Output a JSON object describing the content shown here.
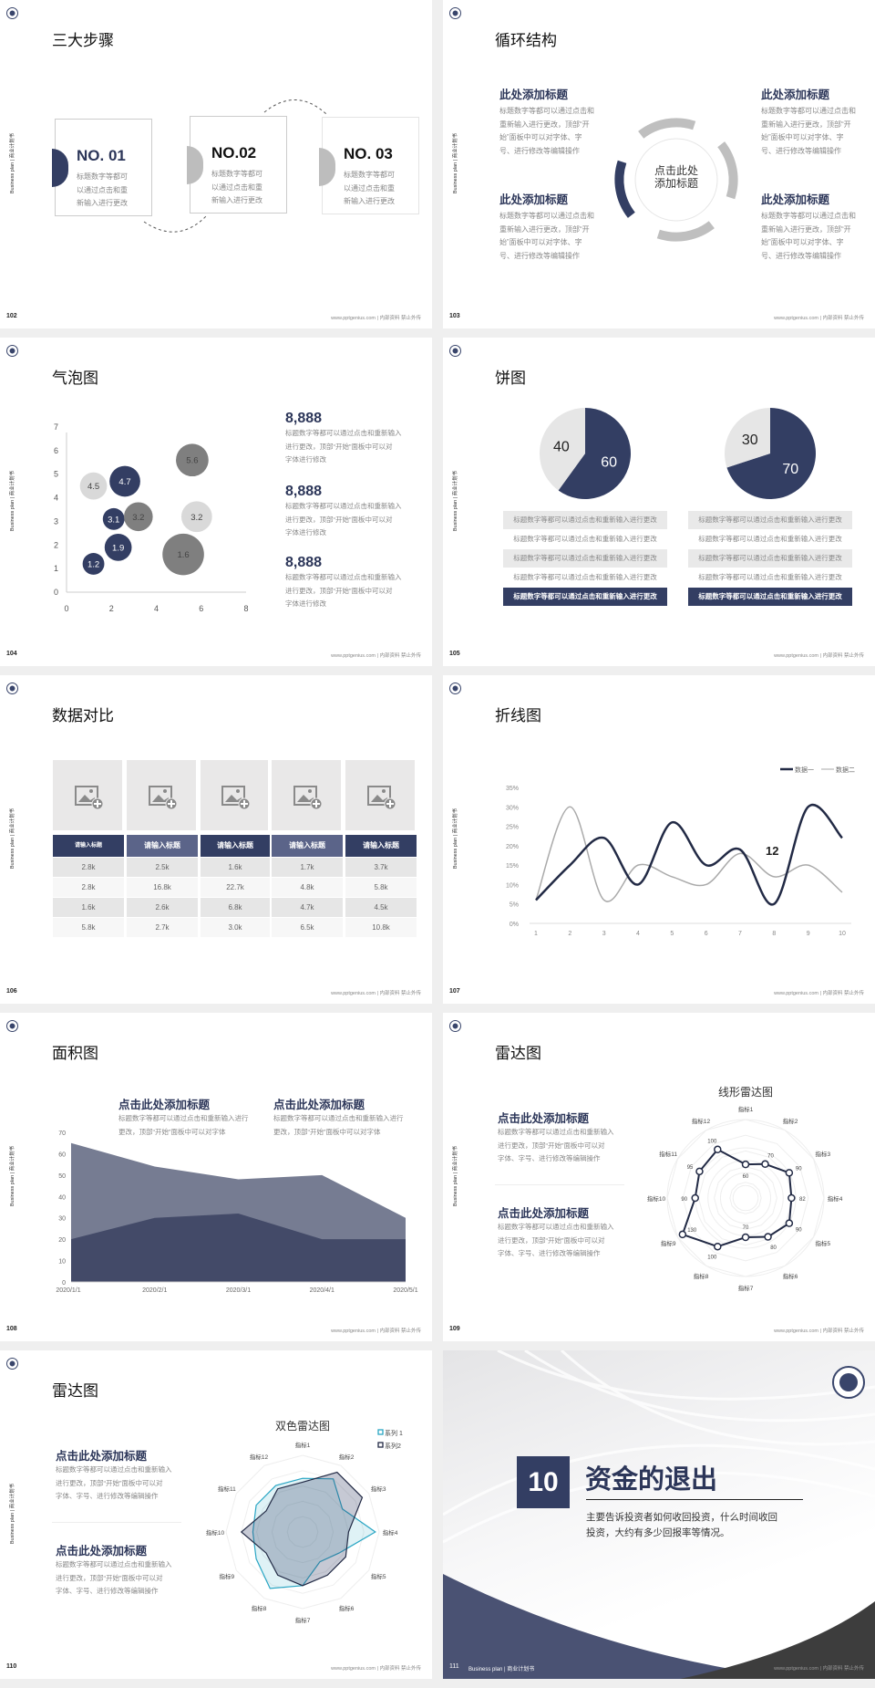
{
  "common": {
    "side_label": "Business plan | 商业计划书",
    "footer": "www.pptgenius.com | 内部资料 禁止外传",
    "desc_short": [
      "标题数字等都可",
      "以通过点击和重",
      "新输入进行更改"
    ],
    "desc_long": [
      "标题数字等都可以通过点击和",
      "重新输入进行更改，顶部“开",
      "始”面板中可以对字体、字",
      "号、进行修改等编辑操作"
    ],
    "accent": "#333e63",
    "grey": "#7f7f7f",
    "light": "#d9d9d9"
  },
  "slides": {
    "s102": {
      "page": "102",
      "title": "三大步骤",
      "steps": [
        {
          "no": "NO. 01"
        },
        {
          "no": "NO.02"
        },
        {
          "no": "NO. 03"
        }
      ]
    },
    "s103": {
      "page": "103",
      "title": "循环结构",
      "center": [
        "点击此处",
        "添加标题"
      ],
      "heading": "此处添加标题"
    },
    "s104": {
      "page": "104",
      "title": "气泡图",
      "stats": [
        {
          "value": "8,888",
          "lines": [
            "标题数字等都可以通过点击和重新输入",
            "进行更改，顶部“开始”面板中可以对",
            "字体进行修改"
          ]
        },
        {
          "value": "8,888",
          "lines": [
            "标题数字等都可以通过点击和重新输入",
            "进行更改，顶部“开始”面板中可以对",
            "字体进行修改"
          ]
        },
        {
          "value": "8,888",
          "lines": [
            "标题数字等都可以通过点击和重新输入",
            "进行更改，顶部“开始”面板中可以对",
            "字体进行修改"
          ]
        }
      ]
    },
    "s105": {
      "page": "105",
      "title": "饼图",
      "row_text": "标题数字等都可以通过点击和重新输入进行更改"
    },
    "s106": {
      "page": "106",
      "title": "数据对比",
      "headers": [
        "请输入标题",
        "请输入标题",
        "请输入标题",
        "请输入标题",
        "请输入标题"
      ],
      "rows": [
        [
          "2.8k",
          "2.5k",
          "1.6k",
          "1.7k",
          "3.7k"
        ],
        [
          "2.8k",
          "16.8k",
          "22.7k",
          "4.8k",
          "5.8k"
        ],
        [
          "1.6k",
          "2.6k",
          "6.8k",
          "4.7k",
          "4.5k"
        ],
        [
          "5.8k",
          "2.7k",
          "3.0k",
          "6.5k",
          "10.8k"
        ]
      ]
    },
    "s107": {
      "page": "107",
      "title": "折线图",
      "annotation": "12"
    },
    "s108": {
      "page": "108",
      "title": "面积图",
      "blocks": [
        {
          "heading": "点击此处添加标题",
          "lines": [
            "标题数字等都可以通过点击和重新输入进行",
            "更改，顶部“开始”面板中可以对字体"
          ]
        },
        {
          "heading": "点击此处添加标题",
          "lines": [
            "标题数字等都可以通过点击和重新输入进行",
            "更改，顶部“开始”面板中可以对字体"
          ]
        }
      ]
    },
    "s109": {
      "page": "109",
      "title": "雷达图",
      "blocks": [
        {
          "heading": "点击此处添加标题",
          "lines": [
            "标题数字等都可以通过点击和重新输入",
            "进行更改，顶部“开始”面板中可以对",
            "字体、字号、进行修改等编辑操作"
          ]
        },
        {
          "heading": "点击此处添加标题",
          "lines": [
            "标题数字等都可以通过点击和重新输入",
            "进行更改，顶部“开始”面板中可以对",
            "字体、字号、进行修改等编辑操作"
          ]
        }
      ]
    },
    "s110": {
      "page": "110",
      "title": "雷达图",
      "blocks": [
        {
          "heading": "点击此处添加标题",
          "lines": [
            "标题数字等都可以通过点击和重新输入",
            "进行更改，顶部“开始”面板中可以对",
            "字体、字号、进行修改等编辑操作"
          ]
        },
        {
          "heading": "点击此处添加标题",
          "lines": [
            "标题数字等都可以通过点击和重新输入",
            "进行更改，顶部“开始”面板中可以对",
            "字体、字号、进行修改等编辑操作"
          ]
        }
      ]
    },
    "s111": {
      "page": "111",
      "number": "10",
      "title": "资金的退出",
      "lines": [
        "主要告诉投资者如何收回投资，什么时间收回",
        "投资，大约有多少回报率等情况。"
      ],
      "footer_left": "Business plan | 商业计划书"
    }
  },
  "chart_data": [
    {
      "type": "scatter",
      "subtype": "bubble",
      "xlim": [
        0,
        8
      ],
      "ylim": [
        0,
        7
      ],
      "xticks": [
        "0",
        "2",
        "4",
        "6",
        "8"
      ],
      "yticks": [
        "0",
        "1",
        "2",
        "3",
        "4",
        "5",
        "6",
        "7"
      ],
      "points": [
        {
          "x": 1.2,
          "y": 1.2,
          "size": 2.9,
          "label": "1.2",
          "color": "#333e63"
        },
        {
          "x": 2.3,
          "y": 1.9,
          "size": 4.5,
          "label": "1.9",
          "color": "#333e63"
        },
        {
          "x": 2.1,
          "y": 3.1,
          "size": 2.9,
          "label": "3.1",
          "color": "#333e63"
        },
        {
          "x": 3.2,
          "y": 3.2,
          "size": 5.1,
          "label": "3.2",
          "color": "#7f7f7f"
        },
        {
          "x": 1.2,
          "y": 4.5,
          "size": 4.5,
          "label": "4.5",
          "color": "#d9d9d9"
        },
        {
          "x": 2.6,
          "y": 4.7,
          "size": 5.8,
          "label": "4.7",
          "color": "#333e63"
        },
        {
          "x": 5.6,
          "y": 5.6,
          "size": 6.5,
          "label": "5.6",
          "color": "#7f7f7f"
        },
        {
          "x": 5.8,
          "y": 3.2,
          "size": 5.8,
          "label": "3.2",
          "color": "#d9d9d9"
        },
        {
          "x": 5.2,
          "y": 1.6,
          "size": 10.6,
          "label": "1.6",
          "color": "#7f7f7f"
        }
      ]
    },
    {
      "type": "pie",
      "values": [
        60,
        40
      ],
      "labels": [
        "60",
        "40"
      ],
      "colors": [
        "#333e63",
        "#e6e6e6"
      ]
    },
    {
      "type": "pie",
      "values": [
        70,
        30
      ],
      "labels": [
        "70",
        "30"
      ],
      "colors": [
        "#333e63",
        "#e6e6e6"
      ]
    },
    {
      "type": "line",
      "smooth": true,
      "categories": [
        "1",
        "2",
        "3",
        "4",
        "5",
        "6",
        "7",
        "8",
        "9",
        "10"
      ],
      "ylim": [
        0,
        35
      ],
      "yticks": [
        "0%",
        "5%",
        "10%",
        "15%",
        "20%",
        "25%",
        "30%",
        "35%"
      ],
      "legend": "top-right",
      "series": [
        {
          "name": "数据一",
          "values": [
            6,
            15,
            22,
            10,
            26,
            15,
            19,
            5,
            30,
            22
          ],
          "color": "#222a45"
        },
        {
          "name": "数据二",
          "values": [
            6,
            30,
            6,
            15,
            12,
            10,
            18,
            12,
            15,
            8
          ],
          "color": "#aaaaaa"
        }
      ]
    },
    {
      "type": "area",
      "categories": [
        "2020/1/1",
        "2020/2/1",
        "2020/3/1",
        "2020/4/1",
        "2020/5/1"
      ],
      "ylim": [
        0,
        70
      ],
      "yticks": [
        "0",
        "10",
        "20",
        "30",
        "40",
        "50",
        "60",
        "70"
      ],
      "series": [
        {
          "values": [
            65,
            54,
            48,
            50,
            30
          ],
          "color": "#767c92"
        },
        {
          "values": [
            20,
            30,
            32,
            20,
            20
          ],
          "color": "#434a68"
        }
      ]
    },
    {
      "type": "radar",
      "title": "线形雷达图",
      "axes": [
        "指标1",
        "指标2",
        "指标3",
        "指标4",
        "指标5",
        "指标6",
        "指标7",
        "指标8",
        "指标9",
        "指标10",
        "指标11",
        "指标12"
      ],
      "max": 140,
      "series": [
        {
          "values": [
            60,
            70,
            90,
            82,
            90,
            80,
            70,
            100,
            130,
            90,
            95,
            100
          ],
          "labels": [
            "60",
            "70",
            "90",
            "82",
            "90",
            "80",
            "70",
            "100",
            "130",
            "90",
            "95",
            "100"
          ],
          "color": "#222a45"
        }
      ]
    },
    {
      "type": "radar",
      "title": "双色雷达图",
      "axes": [
        "指标1",
        "指标2",
        "指标3",
        "指标4",
        "指标5",
        "指标6",
        "指标7",
        "指标8",
        "指标9",
        "指标10",
        "指标11",
        "指标12"
      ],
      "max": 100,
      "legend": "top-right",
      "series": [
        {
          "name": "系列 1",
          "values": [
            70,
            80,
            60,
            95,
            55,
            45,
            70,
            85,
            70,
            65,
            70,
            70
          ],
          "color": "#2aa6c4"
        },
        {
          "name": "系列2",
          "values": [
            65,
            90,
            90,
            60,
            65,
            65,
            70,
            65,
            55,
            80,
            55,
            65
          ],
          "color": "#222a45"
        }
      ]
    }
  ]
}
